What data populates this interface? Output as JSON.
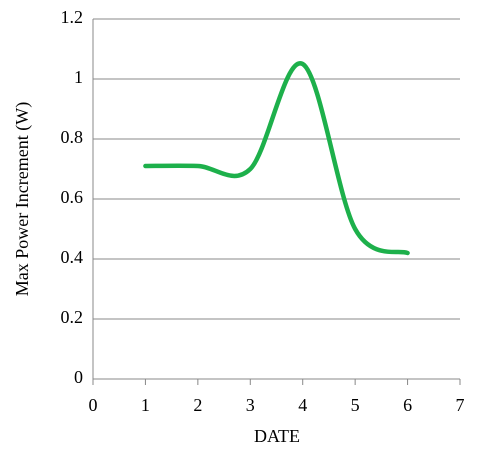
{
  "chart_data": {
    "type": "line",
    "xlabel": "DATE",
    "ylabel": "Max  Power  Increment (W)",
    "x": [
      1,
      2,
      3,
      4,
      5,
      6
    ],
    "series": [
      {
        "color": "#1db04b",
        "values": [
          0.71,
          0.71,
          0.7,
          1.05,
          0.5,
          0.42
        ]
      }
    ],
    "xlim": [
      0,
      7
    ],
    "xticks": [
      0,
      1,
      2,
      3,
      4,
      5,
      6,
      7
    ],
    "ylim": [
      0,
      1.2
    ],
    "yticks": [
      0,
      0.2,
      0.4,
      0.6,
      0.8,
      1,
      1.2
    ],
    "grid": true,
    "smooth": true
  }
}
